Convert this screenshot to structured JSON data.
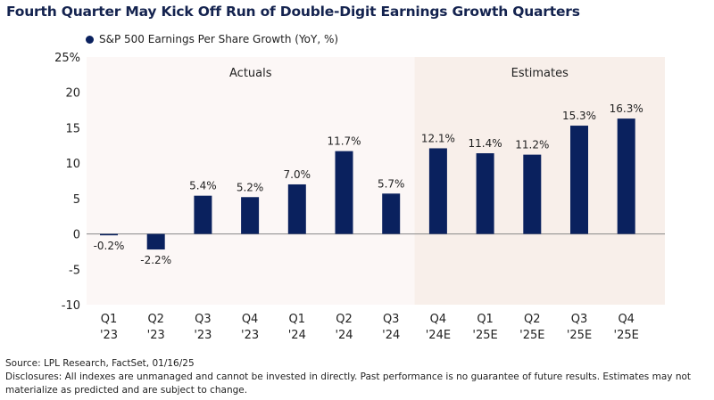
{
  "title": "Fourth Quarter May Kick Off Run of Double-Digit Earnings Growth Quarters",
  "chart_data": {
    "type": "bar",
    "title": "Fourth Quarter May Kick Off Run of Double-Digit Earnings Growth Quarters",
    "categories": [
      [
        "Q1",
        "'23"
      ],
      [
        "Q2",
        "'23"
      ],
      [
        "Q3",
        "'23"
      ],
      [
        "Q4",
        "'23"
      ],
      [
        "Q1",
        "'24"
      ],
      [
        "Q2",
        "'24"
      ],
      [
        "Q3",
        "'24"
      ],
      [
        "Q4",
        "'24E"
      ],
      [
        "Q1",
        "'25E"
      ],
      [
        "Q2",
        "'25E"
      ],
      [
        "Q3",
        "'25E"
      ],
      [
        "Q4",
        "'25E"
      ]
    ],
    "series": [
      {
        "name": "S&P 500 Earnings Per Share Growth (YoY, %)",
        "values": [
          -0.2,
          -2.2,
          5.4,
          5.2,
          7.0,
          11.7,
          5.7,
          12.1,
          11.4,
          11.2,
          15.3,
          16.3
        ],
        "color": "#0a215e"
      }
    ],
    "data_labels": [
      "-0.2%",
      "-2.2%",
      "5.4%",
      "5.2%",
      "7.0%",
      "11.7%",
      "5.7%",
      "12.1%",
      "11.4%",
      "11.2%",
      "15.3%",
      "16.3%"
    ],
    "ylim": [
      -10,
      25
    ],
    "yticks": [
      25,
      20,
      15,
      10,
      5,
      0,
      -5,
      -10
    ],
    "ytick_labels": [
      "25%",
      "20",
      "15",
      "10",
      "5",
      "0",
      "-5",
      "-10"
    ],
    "regions": [
      {
        "label": "Actuals",
        "from_index": 0,
        "to_index": 6,
        "color": "#fcf7f6"
      },
      {
        "label": "Estimates",
        "from_index": 7,
        "to_index": 11,
        "color": "#f8efea"
      }
    ],
    "legend": "top-left",
    "grid": false,
    "xlabel": "",
    "ylabel": ""
  },
  "footer": {
    "source": "Source: LPL Research, FactSet, 01/16/25",
    "disclosure_line1": "Disclosures: All indexes are unmanaged and cannot be invested in directly. Past performance is no guarantee of future results. Estimates may not",
    "disclosure_line2": "materialize as predicted and are subject to change."
  }
}
